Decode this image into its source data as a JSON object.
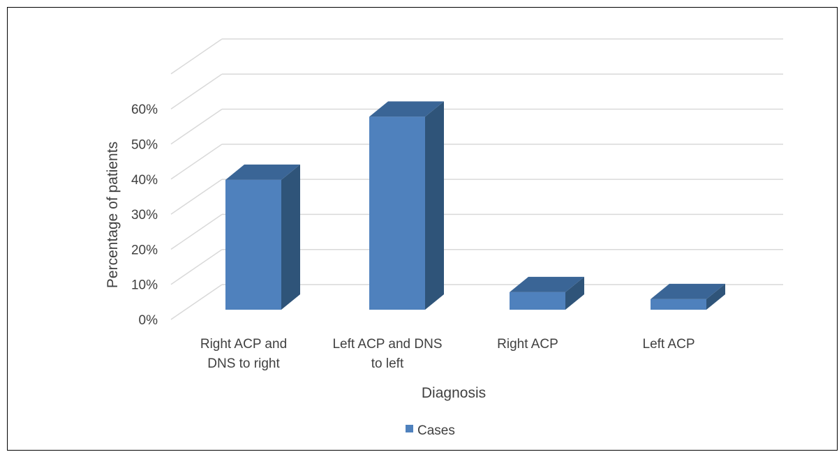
{
  "chart_data": {
    "type": "bar",
    "style": "3d-column",
    "categories": [
      [
        "Right ACP and",
        "DNS to right"
      ],
      [
        "Left ACP and DNS",
        "to left"
      ],
      [
        "Right ACP"
      ],
      [
        "Left ACP"
      ]
    ],
    "series": [
      {
        "name": "Cases",
        "values": [
          37,
          55,
          5,
          3
        ],
        "color": "#4f81bd"
      }
    ],
    "xlabel": "Diagnosis",
    "ylabel": "Percentage of patients",
    "ylim": [
      0,
      60
    ],
    "yticks": [
      "0%",
      "10%",
      "20%",
      "30%",
      "40%",
      "50%",
      "60%"
    ],
    "grid": true,
    "legend_position": "bottom",
    "colors": {
      "front": "#4f81bd",
      "side": "#2f5479",
      "top": "#3a6596",
      "grid": "#d9d9d9"
    }
  }
}
